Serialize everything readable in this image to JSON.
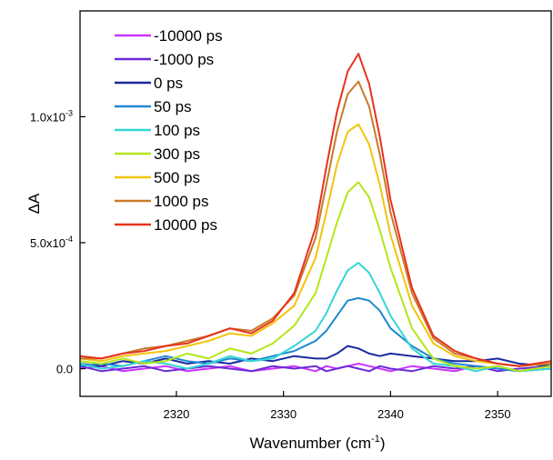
{
  "chart_data": {
    "type": "line",
    "title": "",
    "xlabel": "Wavenumber (cm",
    "xlabel_sup": "-1",
    "xlabel_close": ")",
    "ylabel": "ΔA",
    "xlim": [
      2311,
      2355
    ],
    "ylim": [
      -0.00011,
      0.00142
    ],
    "xticks": [
      2320,
      2330,
      2340,
      2350
    ],
    "xtick_labels": [
      "2320",
      "2330",
      "2340",
      "2350"
    ],
    "yticks": [
      0,
      0.0005,
      0.001
    ],
    "ytick_labels": [
      "0.0",
      "5.0x10-4",
      "1.0x10-3"
    ],
    "grid": false,
    "legend": "top-left",
    "x": [
      2311,
      2313,
      2315,
      2317,
      2319,
      2321,
      2323,
      2325,
      2327,
      2329,
      2331,
      2333,
      2334,
      2335,
      2336,
      2337,
      2338,
      2339,
      2340,
      2342,
      2344,
      2346,
      2348,
      2350,
      2352,
      2355
    ],
    "series": [
      {
        "name": "-10000 ps",
        "color": "#cc33ff",
        "values": [
          0.0,
          1e-05,
          -1e-05,
          0.0,
          1e-05,
          -1e-05,
          0.0,
          1e-05,
          -1e-05,
          0.0,
          1e-05,
          -1e-05,
          1e-05,
          0.0,
          1e-05,
          2e-05,
          1e-05,
          0.0,
          -1e-05,
          1e-05,
          0.0,
          -1e-05,
          1e-05,
          0.0,
          -1e-05,
          0.0
        ]
      },
      {
        "name": "-1000 ps",
        "color": "#6a2bd6",
        "values": [
          1e-05,
          -1e-05,
          0.0,
          1e-05,
          -1e-05,
          0.0,
          1e-05,
          0.0,
          -1e-05,
          1e-05,
          0.0,
          1e-05,
          -1e-05,
          0.0,
          1e-05,
          0.0,
          -1e-05,
          1e-05,
          0.0,
          -1e-05,
          1e-05,
          0.0,
          1e-05,
          -1e-05,
          0.0,
          1e-05
        ]
      },
      {
        "name": "0 ps",
        "color": "#1a2a9e",
        "values": [
          2e-05,
          1e-05,
          3e-05,
          2e-05,
          4e-05,
          2e-05,
          3e-05,
          2e-05,
          4e-05,
          3e-05,
          5e-05,
          4e-05,
          4e-05,
          6e-05,
          9e-05,
          8e-05,
          6e-05,
          5e-05,
          6e-05,
          5e-05,
          4e-05,
          3e-05,
          3e-05,
          4e-05,
          2e-05,
          1e-05
        ]
      },
      {
        "name": "50 ps",
        "color": "#1e88d0",
        "values": [
          1e-05,
          2e-05,
          1e-05,
          3e-05,
          5e-05,
          3e-05,
          2e-05,
          4e-05,
          3e-05,
          5e-05,
          7e-05,
          0.00011,
          0.00015,
          0.00021,
          0.00027,
          0.00028,
          0.00027,
          0.00023,
          0.00016,
          9e-05,
          4e-05,
          2e-05,
          1e-05,
          0.0,
          -1e-05,
          0.0
        ]
      },
      {
        "name": "100 ps",
        "color": "#33d6d6",
        "values": [
          2e-05,
          0.0,
          1e-05,
          3e-05,
          2e-05,
          0.0,
          2e-05,
          5e-05,
          3e-05,
          4e-05,
          9e-05,
          0.00015,
          0.00022,
          0.00031,
          0.00039,
          0.00042,
          0.00038,
          0.0003,
          0.00021,
          8e-05,
          2e-05,
          1e-05,
          -1e-05,
          1e-05,
          -1e-05,
          0.0
        ]
      },
      {
        "name": "300 ps",
        "color": "#b4e61a",
        "values": [
          3e-05,
          2e-05,
          4e-05,
          2e-05,
          3e-05,
          6e-05,
          4e-05,
          8e-05,
          6e-05,
          0.0001,
          0.00017,
          0.0003,
          0.00044,
          0.00058,
          0.0007,
          0.00074,
          0.00068,
          0.00055,
          0.0004,
          0.00016,
          4e-05,
          1e-05,
          0.0,
          1e-05,
          -1e-05,
          1e-05
        ]
      },
      {
        "name": "500 ps",
        "color": "#f2c40d",
        "values": [
          4e-05,
          3e-05,
          5e-05,
          6e-05,
          7e-05,
          9e-05,
          0.00011,
          0.00014,
          0.00013,
          0.00018,
          0.00025,
          0.00044,
          0.00062,
          0.00081,
          0.00094,
          0.00097,
          0.00089,
          0.00073,
          0.00053,
          0.00025,
          0.0001,
          5e-05,
          3e-05,
          2e-05,
          1e-05,
          2e-05
        ]
      },
      {
        "name": "1000 ps",
        "color": "#c87a2a",
        "values": [
          4e-05,
          4e-05,
          6e-05,
          8e-05,
          9e-05,
          0.00011,
          0.00013,
          0.00016,
          0.00015,
          0.0002,
          0.00029,
          0.00052,
          0.00073,
          0.00094,
          0.00109,
          0.00114,
          0.00104,
          0.00085,
          0.00062,
          0.0003,
          0.00012,
          6e-05,
          4e-05,
          2e-05,
          1e-05,
          2e-05
        ]
      },
      {
        "name": "10000 ps",
        "color": "#e8321e",
        "values": [
          5e-05,
          4e-05,
          6e-05,
          7e-05,
          9e-05,
          0.0001,
          0.00013,
          0.00016,
          0.00014,
          0.00019,
          0.0003,
          0.00056,
          0.0008,
          0.00102,
          0.00118,
          0.00125,
          0.00113,
          0.00092,
          0.00067,
          0.00032,
          0.00013,
          7e-05,
          4e-05,
          2e-05,
          1e-05,
          3e-05
        ]
      }
    ]
  }
}
